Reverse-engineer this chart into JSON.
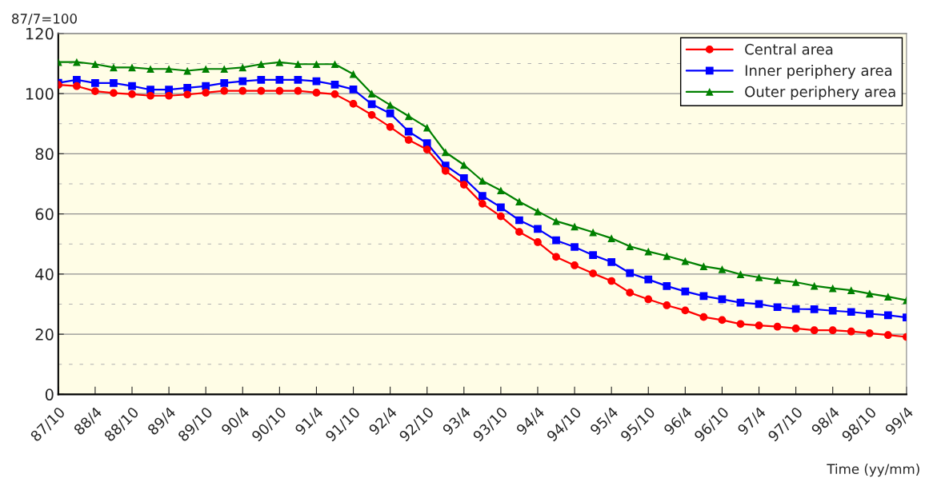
{
  "chart_data": {
    "type": "line",
    "ylabel": "87/7=100",
    "xlabel": "Time (yy/mm)",
    "categories": [
      "87/10",
      null,
      "88/4",
      null,
      "88/10",
      null,
      "89/4",
      null,
      "89/10",
      null,
      "90/4",
      null,
      "90/10",
      null,
      "91/4",
      null,
      "91/10",
      null,
      "92/4",
      null,
      "92/10",
      null,
      "93/4",
      null,
      "93/10",
      null,
      "94/4",
      null,
      "94/10",
      null,
      "95/4",
      null,
      "95/10",
      null,
      "96/4",
      null,
      "96/10",
      null,
      "97/4",
      null,
      "97/10",
      null,
      "98/4",
      null,
      "98/10",
      null,
      "99/4"
    ],
    "series": [
      {
        "name": "Central area",
        "color": "#ff0000",
        "marker": "circle",
        "values": [
          102.9,
          102.5,
          100.8,
          100.2,
          99.8,
          99.3,
          99.3,
          99.7,
          100.3,
          100.9,
          100.9,
          100.9,
          100.9,
          100.9,
          100.3,
          99.8,
          96.6,
          92.9,
          88.9,
          84.6,
          81.4,
          74.3,
          69.7,
          63.4,
          59.2,
          54.0,
          50.6,
          45.7,
          42.9,
          40.2,
          37.7,
          33.8,
          31.6,
          29.6,
          27.9,
          25.7,
          24.7,
          23.4,
          22.9,
          22.5,
          21.9,
          21.3,
          21.3,
          20.9,
          20.3,
          19.7,
          19.1
        ]
      },
      {
        "name": "Inner periphery area",
        "color": "#0000ff",
        "marker": "square",
        "values": [
          103.6,
          104.6,
          103.5,
          103.5,
          102.5,
          101.3,
          101.3,
          101.9,
          102.5,
          103.5,
          104.1,
          104.6,
          104.6,
          104.6,
          104.1,
          103.0,
          101.4,
          96.5,
          93.4,
          87.4,
          83.5,
          76.1,
          71.9,
          66.0,
          62.2,
          57.9,
          55.0,
          51.2,
          49.0,
          46.3,
          44.0,
          40.3,
          38.2,
          36.0,
          34.2,
          32.7,
          31.6,
          30.5,
          30.0,
          29.0,
          28.4,
          28.3,
          27.8,
          27.4,
          26.8,
          26.3,
          25.6
        ]
      },
      {
        "name": "Outer periphery area",
        "color": "#008000",
        "marker": "triangle",
        "values": [
          110.5,
          110.5,
          109.8,
          108.7,
          108.7,
          108.2,
          108.2,
          107.6,
          108.2,
          108.2,
          108.7,
          109.8,
          110.4,
          109.8,
          109.8,
          109.8,
          106.5,
          100.0,
          96.2,
          92.5,
          88.7,
          80.5,
          76.3,
          71.0,
          67.8,
          64.1,
          60.8,
          57.6,
          55.8,
          53.9,
          51.9,
          49.2,
          47.5,
          46.0,
          44.3,
          42.6,
          41.6,
          39.9,
          38.9,
          38.0,
          37.3,
          36.1,
          35.3,
          34.6,
          33.5,
          32.5,
          31.3
        ]
      }
    ],
    "ylim": [
      0,
      120
    ],
    "yticks": [
      0,
      {
        "value": 10,
        "label": null
      },
      20,
      {
        "value": 30,
        "label": null
      },
      40,
      {
        "value": 50,
        "label": null
      },
      60,
      {
        "value": 70,
        "label": null
      },
      80,
      {
        "value": 90,
        "label": null
      },
      100,
      {
        "value": 110,
        "label": null
      },
      120
    ],
    "grid": "y",
    "legend": "top right",
    "line_style": "solid"
  }
}
